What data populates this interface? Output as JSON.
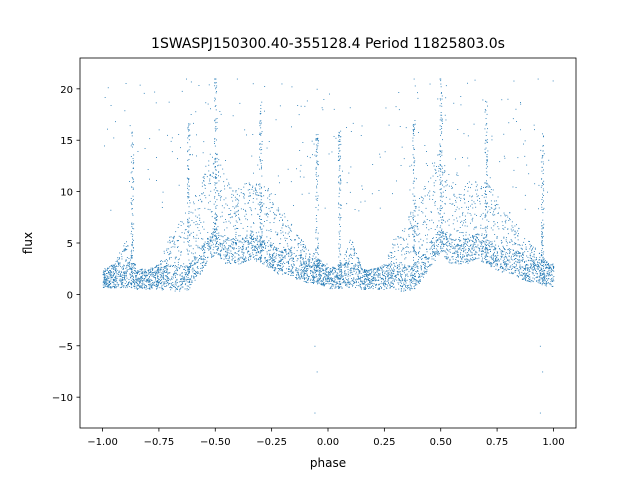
{
  "chart_data": {
    "type": "scatter",
    "title": "1SWASPJ150300.40-355128.4 Period 11825803.0s",
    "xlabel": "phase",
    "ylabel": "flux",
    "xlim": [
      -1.1,
      1.1
    ],
    "ylim": [
      -13.0,
      23.0
    ],
    "xticks": [
      -1.0,
      -0.75,
      -0.5,
      -0.25,
      0.0,
      0.25,
      0.5,
      0.75,
      1.0
    ],
    "xtick_labels": [
      "−1.00",
      "−0.75",
      "−0.50",
      "−0.25",
      "0.00",
      "0.25",
      "0.50",
      "0.75",
      "1.00"
    ],
    "yticks": [
      -10,
      -5,
      0,
      5,
      10,
      15,
      20
    ],
    "ytick_labels": [
      "−10",
      "−5",
      "0",
      "5",
      "10",
      "15",
      "20"
    ],
    "grid": false,
    "legend": "none",
    "marker_color": "#1f77b4",
    "series": [
      {
        "note_profile": "approximate envelope of dense scatter (phase, typical low flux, typical high flux) for the half-cycle -1..0; pattern repeats for 0..1",
        "profile": [
          [
            -1.0,
            0.6,
            2.5
          ],
          [
            -0.95,
            0.6,
            3.0
          ],
          [
            -0.9,
            0.7,
            5.5
          ],
          [
            -0.87,
            0.7,
            4.0
          ],
          [
            -0.85,
            0.5,
            2.5
          ],
          [
            -0.8,
            0.5,
            2.5
          ],
          [
            -0.75,
            0.5,
            3.0
          ],
          [
            -0.7,
            0.4,
            6.0
          ],
          [
            -0.66,
            0.3,
            7.0
          ],
          [
            -0.62,
            0.5,
            9.0
          ],
          [
            -0.58,
            1.5,
            10.0
          ],
          [
            -0.54,
            3.0,
            13.0
          ],
          [
            -0.5,
            4.0,
            14.0
          ],
          [
            -0.46,
            3.0,
            12.0
          ],
          [
            -0.42,
            3.0,
            10.0
          ],
          [
            -0.38,
            3.0,
            11.0
          ],
          [
            -0.34,
            3.5,
            11.0
          ],
          [
            -0.3,
            3.0,
            11.0
          ],
          [
            -0.26,
            2.5,
            10.0
          ],
          [
            -0.22,
            2.0,
            9.0
          ],
          [
            -0.18,
            2.0,
            7.5
          ],
          [
            -0.14,
            1.5,
            6.0
          ],
          [
            -0.1,
            1.2,
            5.0
          ],
          [
            -0.06,
            1.0,
            4.0
          ],
          [
            -0.02,
            0.8,
            3.0
          ]
        ],
        "spike_columns": [
          -0.87,
          -0.62,
          -0.5,
          -0.3,
          -0.05,
          0.05,
          0.38,
          0.5,
          0.7,
          0.95
        ],
        "outliers": [
          [
            -0.06,
            -5.0
          ],
          [
            -0.05,
            -7.5
          ],
          [
            -0.06,
            -11.5
          ],
          [
            0.94,
            -5.0
          ],
          [
            0.95,
            -7.5
          ],
          [
            0.94,
            -11.5
          ],
          [
            -0.63,
            21.0
          ],
          [
            0.38,
            21.0
          ],
          [
            -0.05,
            20.0
          ],
          [
            0.93,
            21.0
          ]
        ]
      }
    ]
  }
}
